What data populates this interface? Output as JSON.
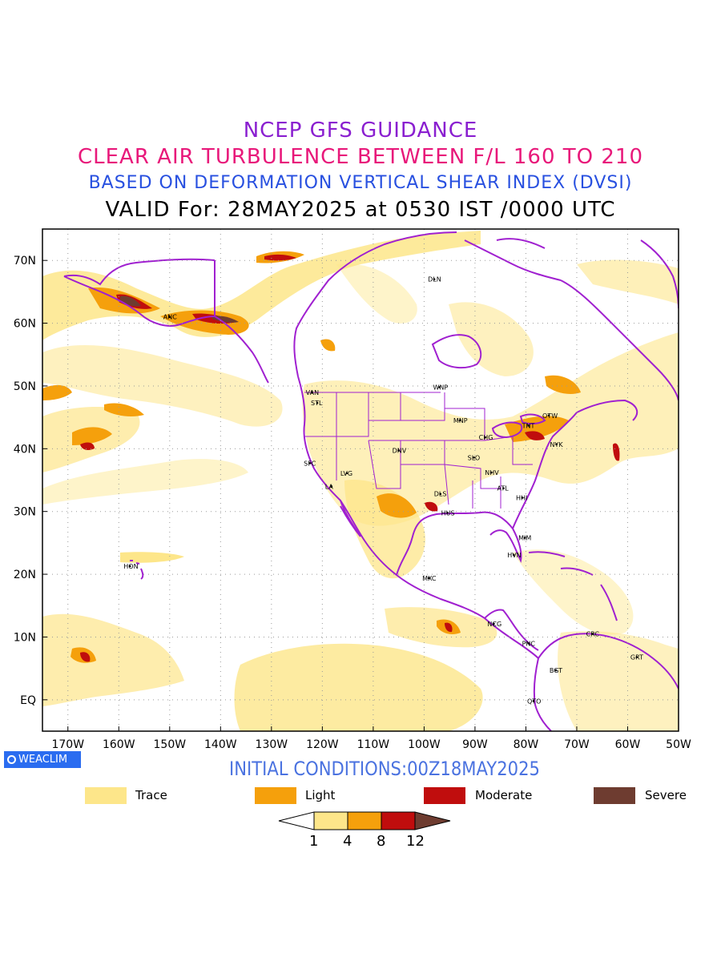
{
  "titles": {
    "line1": "NCEP GFS GUIDANCE",
    "line2": "CLEAR AIR TURBULENCE BETWEEN F/L 160 TO 210",
    "line3": "BASED ON DEFORMATION VERTICAL SHEAR INDEX (DVSI)",
    "line4": "VALID For: 28MAY2025 at 0530 IST /0000 UTC"
  },
  "axes": {
    "x_labels": [
      "170W",
      "160W",
      "150W",
      "140W",
      "130W",
      "120W",
      "110W",
      "100W",
      "90W",
      "80W",
      "70W",
      "60W",
      "50W"
    ],
    "y_labels": [
      "70N",
      "60N",
      "50N",
      "40N",
      "30N",
      "20N",
      "10N",
      "EQ"
    ]
  },
  "stations": [
    {
      "label": "DLN",
      "lon": -98,
      "lat": 67
    },
    {
      "label": "ANC",
      "lon": -150,
      "lat": 61
    },
    {
      "label": "VAN",
      "lon": -122,
      "lat": 49
    },
    {
      "label": "STL",
      "lon": -121,
      "lat": 47.3
    },
    {
      "label": "WNP",
      "lon": -97,
      "lat": 49.8
    },
    {
      "label": "MNP",
      "lon": -93,
      "lat": 44.5
    },
    {
      "label": "OTW",
      "lon": -75.5,
      "lat": 45.3
    },
    {
      "label": "TNT",
      "lon": -79.5,
      "lat": 43.7
    },
    {
      "label": "CHG",
      "lon": -88,
      "lat": 41.8
    },
    {
      "label": "NYK",
      "lon": -74,
      "lat": 40.7
    },
    {
      "label": "DNV",
      "lon": -105,
      "lat": 39.7
    },
    {
      "label": "SFC",
      "lon": -122.4,
      "lat": 37.7
    },
    {
      "label": "LVG",
      "lon": -115.2,
      "lat": 36.1
    },
    {
      "label": "SLO",
      "lon": -90.2,
      "lat": 38.6
    },
    {
      "label": "NHV",
      "lon": -86.8,
      "lat": 36.2
    },
    {
      "label": "LA",
      "lon": -118.2,
      "lat": 34
    },
    {
      "label": "ATL",
      "lon": -84.4,
      "lat": 33.7
    },
    {
      "label": "DLS",
      "lon": -96.8,
      "lat": 32.8
    },
    {
      "label": "HHI",
      "lon": -80.7,
      "lat": 32.2
    },
    {
      "label": "HUS",
      "lon": -95.4,
      "lat": 29.8
    },
    {
      "label": "MIM",
      "lon": -80.2,
      "lat": 25.8
    },
    {
      "label": "HVN",
      "lon": -82.4,
      "lat": 23.1
    },
    {
      "label": "HON",
      "lon": -157.8,
      "lat": 21.3
    },
    {
      "label": "MXC",
      "lon": -99.1,
      "lat": 19.4
    },
    {
      "label": "NCG",
      "lon": -86.3,
      "lat": 12.1
    },
    {
      "label": "CRC",
      "lon": -66.9,
      "lat": 10.5
    },
    {
      "label": "PNC",
      "lon": -79.5,
      "lat": 9
    },
    {
      "label": "GRT",
      "lon": -58.2,
      "lat": 6.8
    },
    {
      "label": "BGT",
      "lon": -74.1,
      "lat": 4.7
    },
    {
      "label": "QTO",
      "lon": -78.5,
      "lat": -0.2
    }
  ],
  "initial_conditions": "INITIAL CONDITIONS:00Z18MAY2025",
  "logo_text": "WEACLIM",
  "legend": [
    {
      "label": "Trace",
      "color": "#fde68a"
    },
    {
      "label": "Light",
      "color": "#f5a00c"
    },
    {
      "label": "Moderate",
      "color": "#c00d0d"
    },
    {
      "label": "Severe",
      "color": "#6e3c30"
    }
  ],
  "colorbar_ticks": [
    "1",
    "4",
    "8",
    "12"
  ],
  "colors": {
    "coast": "#a020d0",
    "trace": "#fde68a",
    "light": "#f5a00c",
    "moderate": "#c00d0d",
    "severe": "#6e3c30"
  }
}
